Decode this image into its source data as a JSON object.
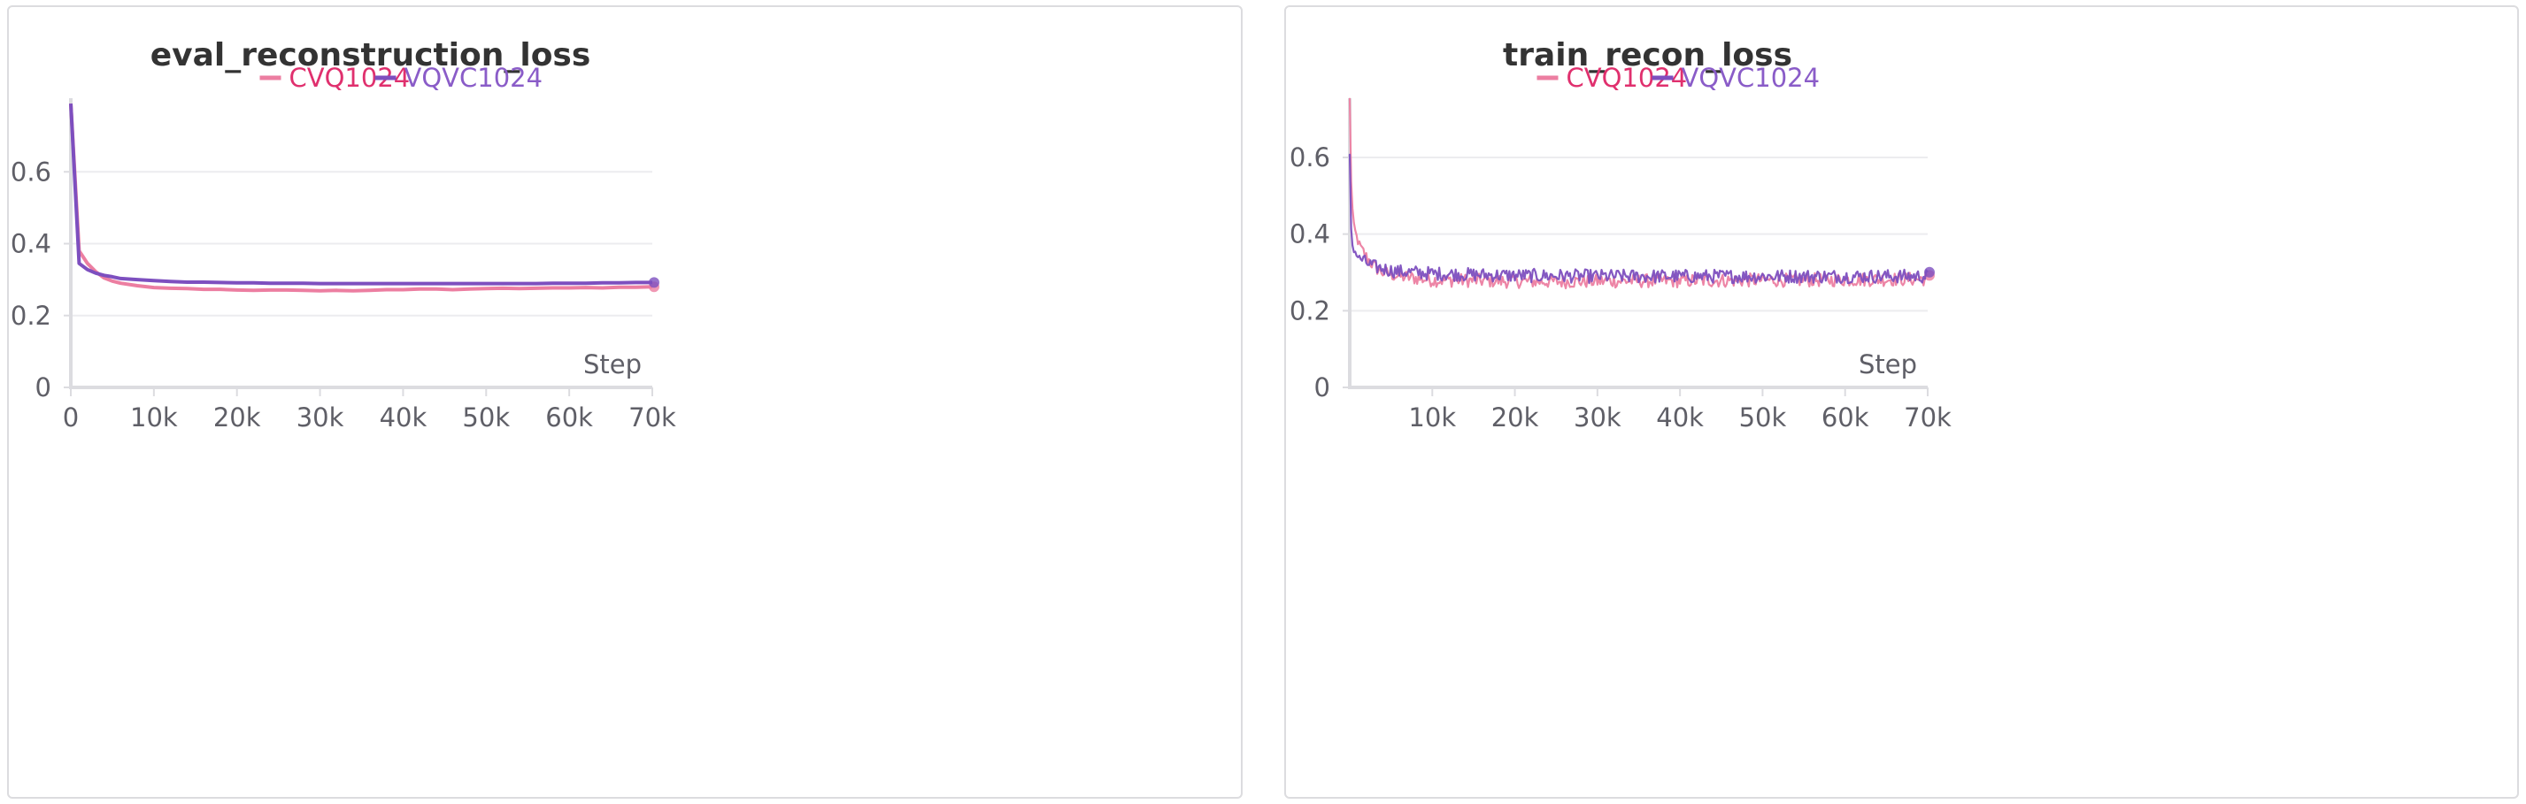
{
  "chart_data": [
    {
      "type": "line",
      "title": "eval_reconstruction_loss",
      "xlabel": "Step",
      "ylabel": "",
      "xlim": [
        0,
        70000
      ],
      "ylim": [
        0,
        0.8
      ],
      "x_ticks": [
        0,
        10000,
        20000,
        30000,
        40000,
        50000,
        60000,
        70000
      ],
      "x_tick_labels": [
        "0",
        "10k",
        "20k",
        "30k",
        "40k",
        "50k",
        "60k",
        "70k"
      ],
      "y_ticks": [
        0,
        0.2,
        0.4,
        0.6
      ],
      "y_tick_labels": [
        "0",
        "0.2",
        "0.4",
        "0.6"
      ],
      "grid": true,
      "legend_position": "top-center",
      "series": [
        {
          "name": "CVQ1024",
          "color": "#ec7ea1",
          "text_color": "#e0306e",
          "x": [
            0,
            1000,
            2000,
            3000,
            4000,
            5000,
            6000,
            8000,
            10000,
            12000,
            14000,
            16000,
            18000,
            20000,
            22000,
            24000,
            26000,
            28000,
            30000,
            32000,
            34000,
            36000,
            38000,
            40000,
            42000,
            44000,
            46000,
            48000,
            50000,
            52000,
            54000,
            56000,
            58000,
            60000,
            62000,
            64000,
            66000,
            68000,
            70000
          ],
          "y": [
            0.79,
            0.38,
            0.345,
            0.322,
            0.305,
            0.296,
            0.29,
            0.283,
            0.278,
            0.276,
            0.275,
            0.273,
            0.273,
            0.271,
            0.27,
            0.271,
            0.271,
            0.27,
            0.269,
            0.27,
            0.269,
            0.27,
            0.272,
            0.272,
            0.274,
            0.274,
            0.272,
            0.274,
            0.275,
            0.276,
            0.275,
            0.276,
            0.277,
            0.277,
            0.278,
            0.277,
            0.279,
            0.279,
            0.28
          ]
        },
        {
          "name": "VQVC1024",
          "color": "#7d4fbf",
          "text_color": "#8a5cc8",
          "x": [
            0,
            1000,
            2000,
            3000,
            4000,
            5000,
            6000,
            8000,
            10000,
            12000,
            14000,
            16000,
            18000,
            20000,
            22000,
            24000,
            26000,
            28000,
            30000,
            32000,
            34000,
            36000,
            38000,
            40000,
            42000,
            44000,
            46000,
            48000,
            50000,
            52000,
            54000,
            56000,
            58000,
            60000,
            62000,
            64000,
            66000,
            68000,
            70000
          ],
          "y": [
            0.79,
            0.345,
            0.328,
            0.318,
            0.312,
            0.308,
            0.303,
            0.3,
            0.297,
            0.295,
            0.293,
            0.293,
            0.292,
            0.291,
            0.291,
            0.29,
            0.29,
            0.29,
            0.289,
            0.289,
            0.289,
            0.289,
            0.289,
            0.289,
            0.289,
            0.289,
            0.289,
            0.289,
            0.289,
            0.289,
            0.289,
            0.289,
            0.29,
            0.29,
            0.29,
            0.291,
            0.291,
            0.292,
            0.292
          ]
        }
      ]
    },
    {
      "type": "line",
      "title": "train_recon_loss",
      "xlabel": "Step",
      "ylabel": "",
      "xlim": [
        0,
        70000
      ],
      "ylim": [
        0,
        0.75
      ],
      "x_ticks": [
        10000,
        20000,
        30000,
        40000,
        50000,
        60000,
        70000
      ],
      "x_tick_labels": [
        "10k",
        "20k",
        "30k",
        "40k",
        "50k",
        "60k",
        "70k"
      ],
      "y_ticks": [
        0,
        0.2,
        0.4,
        0.6
      ],
      "y_tick_labels": [
        "0",
        "0.2",
        "0.4",
        "0.6"
      ],
      "grid": true,
      "legend_position": "top-center",
      "series": [
        {
          "name": "CVQ1024",
          "color": "#ec7ea1",
          "text_color": "#e0306e",
          "x": [
            0,
            200,
            500,
            1000,
            2000,
            3000,
            4000,
            5000,
            6000,
            8000,
            10000,
            15000,
            20000,
            25000,
            30000,
            35000,
            40000,
            45000,
            50000,
            55000,
            60000,
            65000,
            70000
          ],
          "y": [
            0.75,
            0.5,
            0.42,
            0.38,
            0.34,
            0.315,
            0.3,
            0.295,
            0.29,
            0.285,
            0.28,
            0.279,
            0.277,
            0.276,
            0.277,
            0.278,
            0.278,
            0.279,
            0.28,
            0.28,
            0.281,
            0.282,
            0.283
          ]
        },
        {
          "name": "VQVC1024",
          "color": "#7d4fbf",
          "text_color": "#8a5cc8",
          "x": [
            0,
            200,
            500,
            1000,
            2000,
            3000,
            4000,
            5000,
            6000,
            8000,
            10000,
            15000,
            20000,
            25000,
            30000,
            35000,
            40000,
            45000,
            50000,
            55000,
            60000,
            65000,
            70000
          ],
          "y": [
            0.6,
            0.38,
            0.36,
            0.34,
            0.325,
            0.315,
            0.31,
            0.305,
            0.302,
            0.3,
            0.297,
            0.294,
            0.292,
            0.291,
            0.29,
            0.29,
            0.29,
            0.29,
            0.29,
            0.29,
            0.29,
            0.29,
            0.29
          ]
        }
      ]
    }
  ]
}
